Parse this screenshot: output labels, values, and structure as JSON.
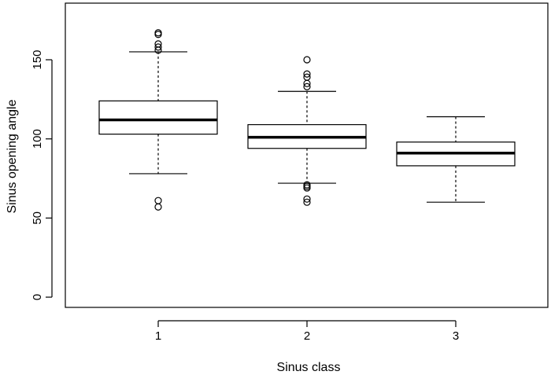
{
  "chart_data": {
    "type": "boxplot",
    "title": "",
    "xlabel": "Sinus class",
    "ylabel": "Sinus opening angle",
    "ylim": [
      -5,
      180
    ],
    "yticks": [
      0,
      50,
      100,
      150
    ],
    "ytick_labels": [
      "0",
      "50",
      "100",
      "150"
    ],
    "grid": false,
    "legend": "none",
    "colors": {
      "stroke": "#000000",
      "fill": "#ffffff"
    },
    "categories": [
      "1",
      "2",
      "3"
    ],
    "boxes": [
      {
        "category": "1",
        "whisker_low": 78,
        "q1": 103,
        "median": 112,
        "q3": 124,
        "whisker_high": 155,
        "outliers": [
          167,
          166,
          160,
          158,
          156,
          61,
          57
        ]
      },
      {
        "category": "2",
        "whisker_low": 72,
        "q1": 94,
        "median": 101,
        "q3": 109,
        "whisker_high": 130,
        "outliers": [
          150,
          141,
          139,
          135,
          133,
          71,
          70,
          69,
          62,
          60
        ]
      },
      {
        "category": "3",
        "whisker_low": 60,
        "q1": 83,
        "median": 91,
        "q3": 98,
        "whisker_high": 114,
        "outliers": []
      }
    ]
  }
}
